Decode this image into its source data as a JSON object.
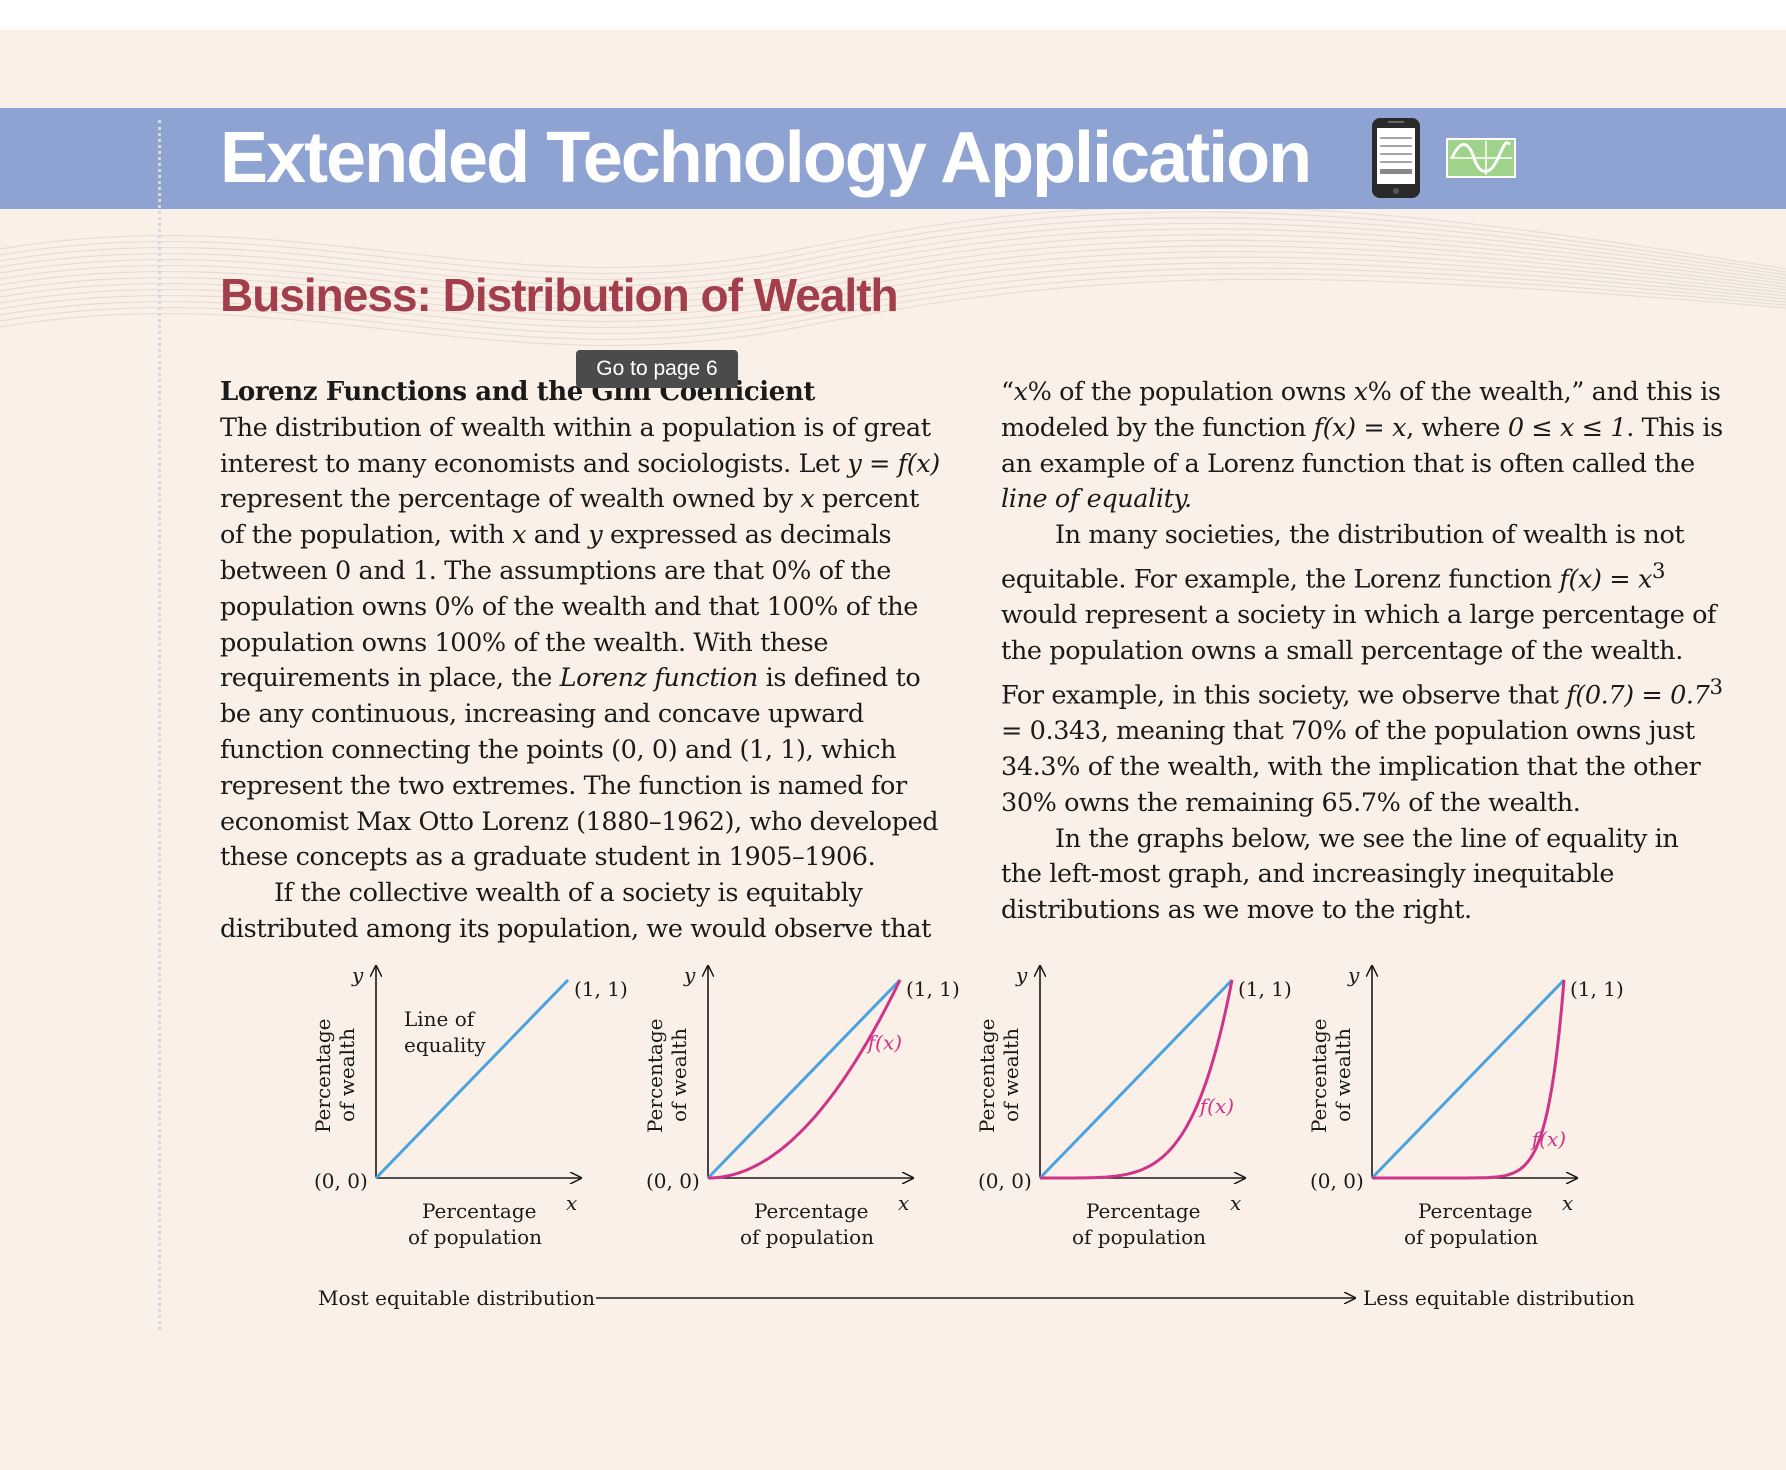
{
  "banner": {
    "title": "Extended Technology Application",
    "icons": [
      "smartphone-icon",
      "graphing-icon"
    ],
    "color": "#8fa3d3"
  },
  "section": {
    "title": "Business: Distribution of Wealth",
    "color": "#a23f4a"
  },
  "tooltip": {
    "label": "Go to page 6"
  },
  "left_column": {
    "heading": "Lorenz Functions and the Gini Coefficient",
    "p1_a": "The distribution of wealth within a population is of great interest to many economists and sociologists. Let ",
    "p1_eq": "y = f(x)",
    "p1_b": " represent the percentage of wealth owned by ",
    "p1_x1": "x",
    "p1_c": " percent of the population, with ",
    "p1_x2": "x",
    "p1_d": " and ",
    "p1_y": "y",
    "p1_e": " expressed as decimals between 0 and 1. The assumptions are that 0% of the population owns 0% of the wealth and that 100% of the population owns 100% of the wealth. With these requirements in place, the ",
    "p1_term": "Lorenz function",
    "p1_f": " is defined to be any continuous, increasing and concave upward function connecting the points ",
    "p1_pt1": "(0, 0)",
    "p1_g": " and ",
    "p1_pt2": "(1, 1)",
    "p1_h": ", which represent the two extremes. The function is named for economist Max Otto Lorenz (1880–1962), who developed these concepts as a graduate student in 1905–1906.",
    "p2": "If the collective wealth of a society is equitably distributed among its population, we would observe that"
  },
  "right_column": {
    "p1_a": "“",
    "p1_x1": "x",
    "p1_b": "% of the population owns ",
    "p1_x2": "x",
    "p1_c": "% of the wealth,” and this is modeled by the function ",
    "p1_eq": "f(x) = x",
    "p1_d": ", where ",
    "p1_range": "0 ≤ x ≤ 1",
    "p1_e": ". This is an example of a Lorenz function that is often called the ",
    "p1_term": "line of equality.",
    "p2_a": "In many societies, the distribution of wealth is not equitable. For example, the Lorenz function ",
    "p2_eq": "f(x) = x",
    "p2_exp": "3",
    "p2_b": " would represent a society in which a large percentage of the population owns a small percentage of the wealth. For example, in this society, we observe that ",
    "p2_calc_a": "f(0.7) = 0.7",
    "p2_calc_exp": "3",
    "p2_calc_b": " = 0.343",
    "p2_c": ", meaning that 70% of the population owns just 34.3% of the wealth, with the implication that the other 30% owns the remaining 65.7% of the wealth.",
    "p3": "In the graphs below, we see the line of equality in the left-most graph, and increasingly inequitable distributions as we move to the right."
  },
  "graphs": {
    "y_axis_label_1": "Percentage",
    "y_axis_label_2": "of wealth",
    "x_axis_label_1": "Percentage",
    "x_axis_label_2": "of population",
    "x_symbol": "x",
    "y_symbol": "y",
    "origin_label": "(0, 0)",
    "end_label": "(1, 1)",
    "curve_label": "f(x)",
    "first_graph_label_1": "Line of",
    "first_graph_label_2": "equality",
    "arrow_left_label": "Most equitable distribution",
    "arrow_right_label": "Less equitable distribution",
    "colors": {
      "equality_line": "#4aa3e0",
      "lorenz_curve": "#d0338a"
    }
  },
  "chart_data": [
    {
      "type": "line",
      "title": "Line of equality",
      "xlabel": "Percentage of population",
      "ylabel": "Percentage of wealth",
      "xlim": [
        0,
        1
      ],
      "ylim": [
        0,
        1
      ],
      "series": [
        {
          "name": "Line of equality",
          "x": [
            0,
            1
          ],
          "y": [
            0,
            1
          ]
        }
      ]
    },
    {
      "type": "line",
      "xlabel": "Percentage of population",
      "ylabel": "Percentage of wealth",
      "xlim": [
        0,
        1
      ],
      "ylim": [
        0,
        1
      ],
      "series": [
        {
          "name": "Line of equality",
          "x": [
            0,
            1
          ],
          "y": [
            0,
            1
          ]
        },
        {
          "name": "f(x)",
          "exponent": 2
        }
      ]
    },
    {
      "type": "line",
      "xlabel": "Percentage of population",
      "ylabel": "Percentage of wealth",
      "xlim": [
        0,
        1
      ],
      "ylim": [
        0,
        1
      ],
      "series": [
        {
          "name": "Line of equality",
          "x": [
            0,
            1
          ],
          "y": [
            0,
            1
          ]
        },
        {
          "name": "f(x)",
          "exponent": 5
        }
      ]
    },
    {
      "type": "line",
      "xlabel": "Percentage of population",
      "ylabel": "Percentage of wealth",
      "xlim": [
        0,
        1
      ],
      "ylim": [
        0,
        1
      ],
      "series": [
        {
          "name": "Line of equality",
          "x": [
            0,
            1
          ],
          "y": [
            0,
            1
          ]
        },
        {
          "name": "f(x)",
          "exponent": 12
        }
      ]
    }
  ]
}
